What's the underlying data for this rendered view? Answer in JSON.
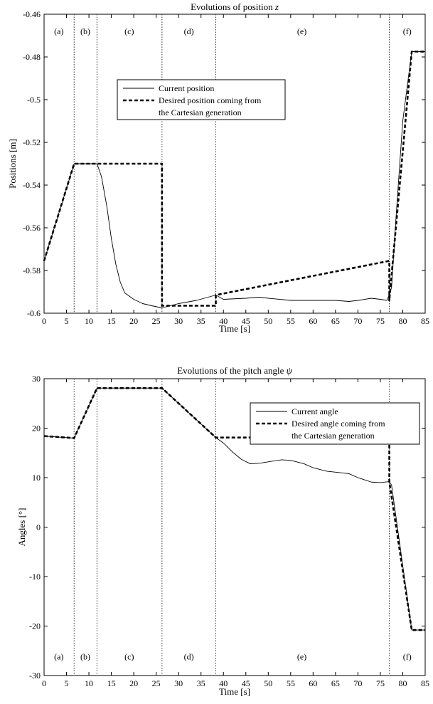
{
  "chart_data": [
    {
      "type": "line",
      "title": "Evolutions of position z",
      "title_prefix": "Evolutions of position ",
      "title_symbol": "z",
      "xlabel": "Time [s]",
      "ylabel": "Positions [m]",
      "xlim": [
        0,
        85
      ],
      "ylim": [
        -0.6,
        -0.46
      ],
      "xticks": [
        "0",
        "5",
        "10",
        "15",
        "20",
        "25",
        "30",
        "35",
        "40",
        "45",
        "50",
        "55",
        "60",
        "65",
        "70",
        "75",
        "80",
        "85"
      ],
      "yticks": [
        "-0.46",
        "-0.48",
        "-0.5",
        "-0.52",
        "-0.54",
        "-0.56",
        "-0.58",
        "-0.6"
      ],
      "phase_lines": [
        6.7,
        11.8,
        26.3,
        38.3,
        77.0
      ],
      "phases": [
        {
          "label": "(a)",
          "x": 3.3
        },
        {
          "label": "(b)",
          "x": 9.2
        },
        {
          "label": "(c)",
          "x": 19.0
        },
        {
          "label": "(d)",
          "x": 32.3
        },
        {
          "label": "(e)",
          "x": 57.5
        },
        {
          "label": "(f)",
          "x": 81.0
        }
      ],
      "phase_label_y": -0.468,
      "legend_position": "upper-left",
      "legend": [
        "Current position",
        "Desired position coming from",
        "the Cartesian generation"
      ],
      "series": [
        {
          "name": "Current position",
          "style": "solid",
          "x": [
            0,
            6.7,
            11.8,
            12.8,
            14,
            15,
            16,
            17,
            18,
            20,
            22,
            24,
            26.3,
            30,
            34,
            38.3,
            40,
            45,
            48,
            50,
            55,
            60,
            65,
            68,
            70,
            73,
            75,
            76.5,
            77.5,
            78.5,
            80,
            82,
            85
          ],
          "y": [
            -0.5755,
            -0.53,
            -0.53,
            -0.536,
            -0.55,
            -0.565,
            -0.577,
            -0.5855,
            -0.5905,
            -0.5935,
            -0.5955,
            -0.5965,
            -0.5975,
            -0.5955,
            -0.594,
            -0.5915,
            -0.5935,
            -0.593,
            -0.5925,
            -0.593,
            -0.594,
            -0.594,
            -0.594,
            -0.5945,
            -0.594,
            -0.593,
            -0.5935,
            -0.594,
            -0.588,
            -0.555,
            -0.51,
            -0.4775,
            -0.4775
          ]
        },
        {
          "name": "Desired position coming from the Cartesian generation",
          "style": "dashed",
          "x": [
            0,
            6.7,
            11.8,
            26.3,
            26.3,
            38.3,
            38.3,
            77.0,
            77.0,
            82,
            85
          ],
          "y": [
            -0.5755,
            -0.53,
            -0.53,
            -0.53,
            -0.5965,
            -0.5965,
            -0.5915,
            -0.5755,
            -0.594,
            -0.4775,
            -0.4775
          ]
        }
      ]
    },
    {
      "type": "line",
      "title": "Evolutions of the pitch angle ψ",
      "title_prefix": "Evolutions of the pitch angle ",
      "title_symbol": "ψ",
      "xlabel": "Time [s]",
      "ylabel": "Angles [°]",
      "xlim": [
        0,
        85
      ],
      "ylim": [
        -30,
        30
      ],
      "xticks": [
        "0",
        "5",
        "10",
        "15",
        "20",
        "25",
        "30",
        "35",
        "40",
        "45",
        "50",
        "55",
        "60",
        "65",
        "70",
        "75",
        "80",
        "85"
      ],
      "yticks": [
        "30",
        "20",
        "10",
        "0",
        "-10",
        "-20",
        "-30"
      ],
      "phase_lines": [
        6.7,
        11.8,
        26.3,
        38.3,
        77.0
      ],
      "phases": [
        {
          "label": "(a)",
          "x": 3.3
        },
        {
          "label": "(b)",
          "x": 9.2
        },
        {
          "label": "(c)",
          "x": 19.0
        },
        {
          "label": "(d)",
          "x": 32.3
        },
        {
          "label": "(e)",
          "x": 57.5
        },
        {
          "label": "(f)",
          "x": 81.0
        }
      ],
      "phase_label_y": -26.2,
      "legend_position": "upper-right",
      "legend": [
        "Current angle",
        "Desired angle coming from",
        "the Cartesian generation"
      ],
      "series": [
        {
          "name": "Current angle",
          "style": "solid",
          "x": [
            0,
            6.7,
            11.8,
            26.3,
            38.3,
            40,
            42,
            44,
            46,
            48,
            50,
            53,
            55,
            58,
            60,
            63,
            65,
            68,
            70,
            73,
            75,
            77.0,
            77.5,
            82,
            85
          ],
          "y": [
            18.4,
            18.0,
            28.1,
            28.1,
            18.1,
            17.0,
            15.2,
            13.7,
            12.8,
            12.9,
            13.2,
            13.6,
            13.5,
            12.8,
            12.0,
            11.3,
            11.1,
            10.8,
            10.0,
            9.1,
            9.0,
            9.2,
            8.5,
            -20.8,
            -20.8
          ]
        },
        {
          "name": "Desired angle coming from the Cartesian generation",
          "style": "dashed",
          "x": [
            0,
            6.7,
            11.8,
            26.3,
            38.3,
            77.0,
            77.0,
            82,
            85
          ],
          "y": [
            18.4,
            18.0,
            28.1,
            28.1,
            18.1,
            18.1,
            9.2,
            -20.8,
            -20.8
          ]
        }
      ]
    }
  ]
}
